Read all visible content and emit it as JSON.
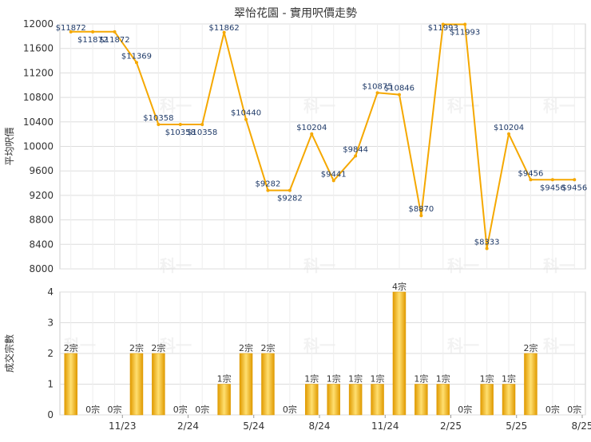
{
  "title": "翠怡花園 - 實用呎價走勢",
  "watermark": "科一",
  "colors": {
    "line": "#f5a800",
    "bar_dark": "#e09a00",
    "bar_light": "#ffdf70",
    "grid": "#dddddd",
    "axis_text": "#333333",
    "label_text": "#1f3a68"
  },
  "chart_data": [
    {
      "type": "line",
      "title": "翠怡花園 - 實用呎價走勢",
      "ylabel": "平均呎價",
      "ylim": [
        8000,
        12000
      ],
      "yticks": [
        8000,
        8400,
        8800,
        9200,
        9600,
        10000,
        10400,
        10800,
        11200,
        11600,
        12000
      ],
      "grid": true,
      "values": [
        11872,
        11872,
        11872,
        11369,
        10358,
        10358,
        10358,
        11862,
        10440,
        9282,
        9282,
        10204,
        9441,
        9844,
        10875,
        10846,
        8870,
        11993,
        11993,
        8333,
        10204,
        9456,
        9456,
        9456
      ],
      "labels": [
        "$11872",
        "$11872",
        "$11872",
        "$11369",
        "$10358",
        "$10358",
        "$10358",
        "$11862",
        "$10440",
        "$9282",
        "$9282",
        "$10204",
        "$9441",
        "$9844",
        "$10875",
        "$10846",
        "$8870",
        "$11993",
        "$11993",
        "$8333",
        "$10204",
        "$9456",
        "$9456",
        "$9456"
      ]
    },
    {
      "type": "bar",
      "ylabel": "成交宗數",
      "ylim": [
        0,
        4
      ],
      "yticks": [
        0,
        1,
        2,
        3,
        4
      ],
      "grid": true,
      "xticks": [
        "11/23",
        "2/24",
        "5/24",
        "8/24",
        "11/24",
        "2/25",
        "5/25",
        "8/25"
      ],
      "values": [
        2,
        0,
        0,
        2,
        2,
        0,
        0,
        1,
        2,
        2,
        0,
        1,
        1,
        1,
        1,
        4,
        1,
        1,
        0,
        1,
        1,
        2,
        0,
        0
      ],
      "labels": [
        "2宗",
        "0宗",
        "0宗",
        "2宗",
        "2宗",
        "0宗",
        "0宗",
        "1宗",
        "2宗",
        "2宗",
        "0宗",
        "1宗",
        "1宗",
        "1宗",
        "1宗",
        "4宗",
        "1宗",
        "1宗",
        "0宗",
        "1宗",
        "1宗",
        "2宗",
        "0宗",
        "0宗"
      ]
    }
  ]
}
